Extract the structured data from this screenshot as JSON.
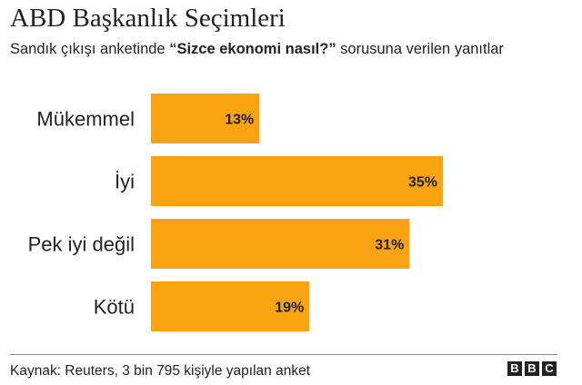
{
  "header": {
    "title": "ABD Başkanlık Seçimleri",
    "subtitle_prefix": "Sandık çıkışı anketinde ",
    "subtitle_emphasis": "“Sizce ekonomi nasıl?”",
    "subtitle_suffix": " sorusuna verilen yanıtlar"
  },
  "footer": {
    "source": "Kaynak: Reuters, 3 bin 795 kişiyle yapılan anket",
    "logo": [
      "B",
      "B",
      "C"
    ]
  },
  "colors": {
    "bar": "#fca311",
    "text": "#222222"
  },
  "chart_data": {
    "type": "bar",
    "orientation": "horizontal",
    "categories": [
      "Mükemmel",
      "İyi",
      "Pek iyi değil",
      "Kötü"
    ],
    "values": [
      13,
      35,
      31,
      19
    ],
    "value_labels": [
      "13%",
      "35%",
      "31%",
      "19%"
    ],
    "unit": "%",
    "xlim": [
      0,
      35
    ],
    "grid": false,
    "legend": "none"
  }
}
